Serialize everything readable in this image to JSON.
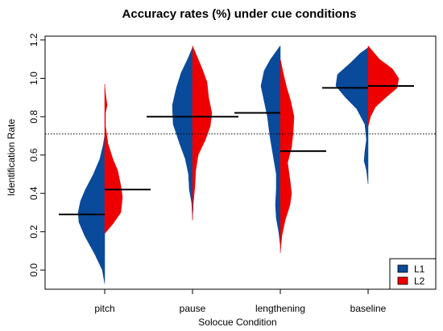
{
  "chart_data": {
    "type": "split-violin",
    "title": "Accuracy rates (%) under cue conditions",
    "xlabel": "Solocue Condition",
    "ylabel": "Identification Rate",
    "categories": [
      "pitch",
      "pause",
      "lengthening",
      "baseline"
    ],
    "ylim": [
      -0.1,
      1.22
    ],
    "yticks": [
      "0.0",
      "0.2",
      "0.4",
      "0.6",
      "0.8",
      "1.0",
      "1.2"
    ],
    "ytick_values": [
      0.0,
      0.2,
      0.4,
      0.6,
      0.8,
      1.0,
      1.2
    ],
    "reference_line": {
      "y": 0.71,
      "style": "dotted"
    },
    "legend": {
      "position": "bottom-right",
      "entries": [
        "L1",
        "L2"
      ]
    },
    "series": [
      {
        "name": "L1",
        "color": "#0a4a9a",
        "side": "left",
        "means": [
          0.29,
          0.8,
          0.82,
          0.95
        ],
        "ranges": [
          [
            -0.07,
            0.7
          ],
          [
            0.27,
            1.16
          ],
          [
            0.13,
            1.17
          ],
          [
            0.45,
            1.16
          ]
        ]
      },
      {
        "name": "L2",
        "color": "#ee0000",
        "side": "right",
        "means": [
          0.42,
          0.8,
          0.62,
          0.96
        ],
        "ranges": [
          [
            0.19,
            0.97
          ],
          [
            0.26,
            1.17
          ],
          [
            0.09,
            1.1
          ],
          [
            0.75,
            1.17
          ]
        ]
      }
    ]
  }
}
